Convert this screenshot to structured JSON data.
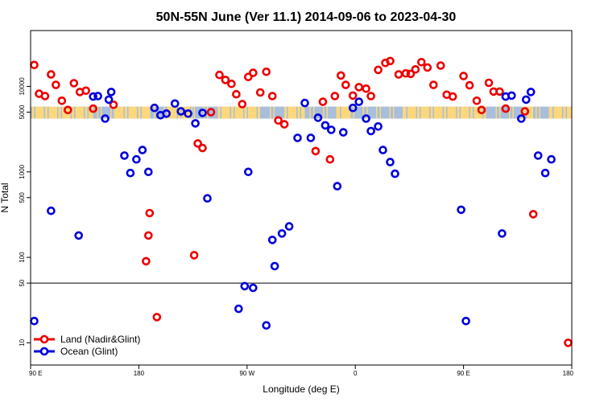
{
  "chart_data": {
    "type": "scatter",
    "title": "50N-55N June (Ver 11.1)   2014-09-06 to 2023-04-30",
    "xlabel": "Longitude (deg E)",
    "ylabel": "N Total",
    "x_ticks": [
      {
        "value": 90,
        "label": "90 E"
      },
      {
        "value": 180,
        "label": "180"
      },
      {
        "value": 270,
        "label": "90 W"
      },
      {
        "value": 360,
        "label": "0"
      },
      {
        "value": 450,
        "label": "90 E"
      },
      {
        "value": 540,
        "label": "180"
      }
    ],
    "y_ticks": [
      {
        "value": 10,
        "label": "10"
      },
      {
        "value": 50,
        "label": "50"
      },
      {
        "value": 100,
        "label": "100"
      },
      {
        "value": 500,
        "label": "500"
      },
      {
        "value": 1000,
        "label": "1000"
      },
      {
        "value": 5000,
        "label": "5000"
      },
      {
        "value": 10000,
        "label": "10000"
      }
    ],
    "xlim": [
      90,
      540
    ],
    "ylim": [
      5.5,
      45000
    ],
    "y_scale": "log",
    "reference_line_y": 50,
    "legend": {
      "position": "bottom-left",
      "entries": [
        {
          "name": "Land (Nadir&Glint)",
          "color": "#ee0000"
        },
        {
          "name": "Ocean (Glint)",
          "color": "#0000dd"
        }
      ]
    },
    "series": [
      {
        "name": "Land (Nadir&Glint)",
        "color": "#ee0000",
        "points": [
          [
            93,
            17800
          ],
          [
            97,
            8200
          ],
          [
            102,
            7700
          ],
          [
            107,
            13800
          ],
          [
            111,
            10400
          ],
          [
            116,
            6800
          ],
          [
            121,
            5300
          ],
          [
            126,
            10900
          ],
          [
            131,
            8600
          ],
          [
            136,
            8900
          ],
          [
            142,
            5500
          ],
          [
            159,
            6100
          ],
          [
            186,
            90
          ],
          [
            188,
            180
          ],
          [
            189,
            330
          ],
          [
            195,
            20
          ],
          [
            226,
            106
          ],
          [
            229,
            2150
          ],
          [
            233,
            1900
          ],
          [
            240,
            5000
          ],
          [
            247,
            13600
          ],
          [
            252,
            11900
          ],
          [
            257,
            10700
          ],
          [
            261,
            8100
          ],
          [
            266,
            6200
          ],
          [
            271,
            12900
          ],
          [
            275,
            14400
          ],
          [
            281,
            8500
          ],
          [
            286,
            14800
          ],
          [
            291,
            7700
          ],
          [
            296,
            4000
          ],
          [
            301,
            3600
          ],
          [
            327,
            1750
          ],
          [
            333,
            6600
          ],
          [
            339,
            1400
          ],
          [
            343,
            7700
          ],
          [
            348,
            13400
          ],
          [
            352,
            10400
          ],
          [
            358,
            7800
          ],
          [
            363,
            9800
          ],
          [
            369,
            9400
          ],
          [
            373,
            7700
          ],
          [
            379,
            15600
          ],
          [
            385,
            18800
          ],
          [
            389,
            19800
          ],
          [
            396,
            13800
          ],
          [
            402,
            14200
          ],
          [
            406,
            14000
          ],
          [
            410,
            15800
          ],
          [
            415,
            19200
          ],
          [
            420,
            16600
          ],
          [
            425,
            10400
          ],
          [
            431,
            17500
          ],
          [
            436,
            8000
          ],
          [
            441,
            7600
          ],
          [
            450,
            13200
          ],
          [
            455,
            10300
          ],
          [
            461,
            6800
          ],
          [
            465,
            5300
          ],
          [
            471,
            11000
          ],
          [
            475,
            8700
          ],
          [
            480,
            8700
          ],
          [
            485,
            5500
          ],
          [
            501,
            5100
          ],
          [
            508,
            320
          ],
          [
            537,
            10
          ]
        ]
      },
      {
        "name": "Ocean (Glint)",
        "color": "#0000dd",
        "points": [
          [
            93,
            18
          ],
          [
            107,
            350
          ],
          [
            130,
            180
          ],
          [
            142,
            7600
          ],
          [
            146,
            7700
          ],
          [
            152,
            4200
          ],
          [
            155,
            7000
          ],
          [
            157,
            8600
          ],
          [
            168,
            1550
          ],
          [
            173,
            970
          ],
          [
            178,
            1400
          ],
          [
            183,
            1800
          ],
          [
            188,
            1000
          ],
          [
            193,
            5600
          ],
          [
            198,
            4600
          ],
          [
            203,
            4800
          ],
          [
            210,
            6300
          ],
          [
            215,
            5100
          ],
          [
            221,
            4800
          ],
          [
            227,
            3700
          ],
          [
            233,
            4900
          ],
          [
            237,
            490
          ],
          [
            263,
            25
          ],
          [
            268,
            46
          ],
          [
            271,
            1000
          ],
          [
            275,
            44
          ],
          [
            286,
            16
          ],
          [
            291,
            160
          ],
          [
            293,
            79
          ],
          [
            299,
            190
          ],
          [
            305,
            230
          ],
          [
            312,
            2500
          ],
          [
            318,
            6400
          ],
          [
            323,
            2500
          ],
          [
            329,
            4300
          ],
          [
            335,
            3500
          ],
          [
            340,
            3100
          ],
          [
            345,
            680
          ],
          [
            350,
            2900
          ],
          [
            358,
            5600
          ],
          [
            363,
            6600
          ],
          [
            369,
            4200
          ],
          [
            373,
            3000
          ],
          [
            379,
            3400
          ],
          [
            383,
            1800
          ],
          [
            389,
            1300
          ],
          [
            393,
            950
          ],
          [
            448,
            360
          ],
          [
            452,
            18
          ],
          [
            482,
            190
          ],
          [
            485,
            7600
          ],
          [
            490,
            7800
          ],
          [
            498,
            4200
          ],
          [
            502,
            7000
          ],
          [
            506,
            8600
          ],
          [
            512,
            1550
          ],
          [
            518,
            970
          ],
          [
            523,
            1400
          ]
        ]
      }
    ]
  },
  "band": {
    "y_low": 4200,
    "y_high": 5800,
    "land_color": "#fcd77c",
    "ocean_color": "#a7bedc"
  }
}
